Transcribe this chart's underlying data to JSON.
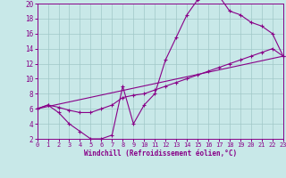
{
  "bg_color": "#c8e8e8",
  "line_color": "#880088",
  "grid_color": "#a0c8c8",
  "xlim": [
    0,
    23
  ],
  "ylim": [
    2,
    20
  ],
  "xtick_vals": [
    0,
    1,
    2,
    3,
    4,
    5,
    6,
    7,
    8,
    9,
    10,
    11,
    12,
    13,
    14,
    15,
    16,
    17,
    18,
    19,
    20,
    21,
    22,
    23
  ],
  "ytick_vals": [
    2,
    4,
    6,
    8,
    10,
    12,
    14,
    16,
    18,
    20
  ],
  "xlabel": "Windchill (Refroidissement éolien,°C)",
  "curve1_x": [
    0,
    1,
    2,
    3,
    4,
    5,
    6,
    7,
    8,
    9,
    10,
    11,
    12,
    13,
    14,
    15,
    16,
    17,
    18,
    19,
    20,
    21,
    22,
    23
  ],
  "curve1_y": [
    6.0,
    6.5,
    5.5,
    4.0,
    3.0,
    2.0,
    2.0,
    2.5,
    9.0,
    4.0,
    6.5,
    8.0,
    12.5,
    15.5,
    18.5,
    20.5,
    21.0,
    21.0,
    19.0,
    18.5,
    17.5,
    17.0,
    16.0,
    13.0
  ],
  "curve2_x": [
    0,
    1,
    2,
    3,
    4,
    5,
    6,
    7,
    8,
    9,
    10,
    11,
    12,
    13,
    14,
    15,
    16,
    17,
    18,
    19,
    20,
    21,
    22,
    23
  ],
  "curve2_y": [
    6.0,
    6.5,
    6.2,
    5.8,
    5.5,
    5.5,
    6.0,
    6.5,
    7.5,
    7.8,
    8.0,
    8.5,
    9.0,
    9.5,
    10.0,
    10.5,
    11.0,
    11.5,
    12.0,
    12.5,
    13.0,
    13.5,
    14.0,
    13.0
  ],
  "curve3_x": [
    0,
    23
  ],
  "curve3_y": [
    6.0,
    13.0
  ],
  "xtick_fontsize": 5.0,
  "ytick_fontsize": 5.5,
  "xlabel_fontsize": 5.5
}
